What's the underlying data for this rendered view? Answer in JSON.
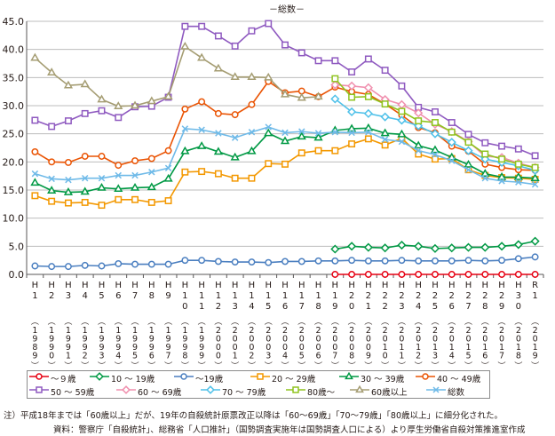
{
  "chart_data": {
    "type": "line",
    "title": "－総数－",
    "ylim": [
      0,
      45
    ],
    "yticks": [
      "0.0",
      "5.0",
      "10.0",
      "15.0",
      "20.0",
      "25.0",
      "30.0",
      "35.0",
      "40.0",
      "45.0"
    ],
    "grid": "horizontal",
    "legend_position": "bottom",
    "categories": [
      {
        "era": "H1",
        "year": "1989"
      },
      {
        "era": "H2",
        "year": "1990"
      },
      {
        "era": "H3",
        "year": "1991"
      },
      {
        "era": "H4",
        "year": "1992"
      },
      {
        "era": "H5",
        "year": "1993"
      },
      {
        "era": "H6",
        "year": "1994"
      },
      {
        "era": "H7",
        "year": "1995"
      },
      {
        "era": "H8",
        "year": "1996"
      },
      {
        "era": "H9",
        "year": "1997"
      },
      {
        "era": "H10",
        "year": "1998"
      },
      {
        "era": "H11",
        "year": "1999"
      },
      {
        "era": "H12",
        "year": "2000"
      },
      {
        "era": "H13",
        "year": "2001"
      },
      {
        "era": "H14",
        "year": "2002"
      },
      {
        "era": "H15",
        "year": "2003"
      },
      {
        "era": "H16",
        "year": "2004"
      },
      {
        "era": "H17",
        "year": "2005"
      },
      {
        "era": "H18",
        "year": "2006"
      },
      {
        "era": "H19",
        "year": "2007"
      },
      {
        "era": "H20",
        "year": "2008"
      },
      {
        "era": "H21",
        "year": "2009"
      },
      {
        "era": "H22",
        "year": "2010"
      },
      {
        "era": "H23",
        "year": "2011"
      },
      {
        "era": "H24",
        "year": "2012"
      },
      {
        "era": "H25",
        "year": "2013"
      },
      {
        "era": "H26",
        "year": "2014"
      },
      {
        "era": "H27",
        "year": "2015"
      },
      {
        "era": "H28",
        "year": "2016"
      },
      {
        "era": "H29",
        "year": "2017"
      },
      {
        "era": "H30",
        "year": "2018"
      },
      {
        "era": "R1",
        "year": "2019"
      }
    ],
    "series": [
      {
        "name": "～９歳",
        "color": "#e60012",
        "marker": "circle",
        "values": [
          null,
          null,
          null,
          null,
          null,
          null,
          null,
          null,
          null,
          null,
          null,
          null,
          null,
          null,
          null,
          null,
          null,
          null,
          0.0,
          0.0,
          0.0,
          0.0,
          0.0,
          0.0,
          0.0,
          0.0,
          0.0,
          0.0,
          0.0,
          0.0,
          0.0
        ]
      },
      {
        "name": "10 ～ 19歳",
        "color": "#009944",
        "marker": "diamond",
        "values": [
          null,
          null,
          null,
          null,
          null,
          null,
          null,
          null,
          null,
          null,
          null,
          null,
          null,
          null,
          null,
          null,
          null,
          null,
          4.5,
          5.0,
          4.8,
          4.7,
          5.2,
          5.0,
          4.6,
          4.7,
          4.8,
          4.8,
          5.0,
          5.3,
          5.9
        ]
      },
      {
        "name": "～19歳",
        "color": "#4b7fc0",
        "marker": "circle",
        "values": [
          1.5,
          1.4,
          1.4,
          1.6,
          1.5,
          1.9,
          1.8,
          1.8,
          1.8,
          2.5,
          2.5,
          2.3,
          2.2,
          2.2,
          2.1,
          2.3,
          2.3,
          2.4,
          2.4,
          2.5,
          2.4,
          2.4,
          2.5,
          2.4,
          2.4,
          2.4,
          2.5,
          2.4,
          2.5,
          2.8,
          3.1
        ]
      },
      {
        "name": "20 ～ 29歳",
        "color": "#f39800",
        "marker": "square",
        "values": [
          14.0,
          13.0,
          12.7,
          12.8,
          12.3,
          13.3,
          13.3,
          12.8,
          13.1,
          18.2,
          18.3,
          17.9,
          17.1,
          17.1,
          19.7,
          19.6,
          21.6,
          22.0,
          22.0,
          23.2,
          24.1,
          23.0,
          24.2,
          21.4,
          20.5,
          20.6,
          18.6,
          17.6,
          17.2,
          17.1,
          16.9
        ]
      },
      {
        "name": "30 ～ 39歳",
        "color": "#009944",
        "marker": "triangle",
        "values": [
          16.3,
          14.9,
          14.6,
          14.7,
          15.4,
          15.2,
          15.4,
          15.5,
          17.0,
          21.9,
          22.8,
          21.8,
          20.8,
          21.9,
          25.1,
          23.7,
          24.5,
          24.3,
          25.6,
          25.9,
          26.0,
          25.1,
          24.9,
          22.9,
          22.1,
          20.8,
          19.5,
          17.9,
          17.3,
          17.3,
          17.1
        ]
      },
      {
        "name": "40 ～ 49歳",
        "color": "#ea5404",
        "marker": "circle",
        "values": [
          21.8,
          20.0,
          19.9,
          21.0,
          21.0,
          19.4,
          20.2,
          20.6,
          22.0,
          29.4,
          30.7,
          28.6,
          28.4,
          30.2,
          34.3,
          32.3,
          32.6,
          31.6,
          33.3,
          32.5,
          32.0,
          30.3,
          28.3,
          26.1,
          25.2,
          22.8,
          21.9,
          19.6,
          19.0,
          18.6,
          18.5
        ]
      },
      {
        "name": "50 ～ 59歳",
        "color": "#8f5ac0",
        "marker": "square",
        "values": [
          27.4,
          26.3,
          27.3,
          28.6,
          29.1,
          27.9,
          29.8,
          29.9,
          31.5,
          44.1,
          44.1,
          42.4,
          40.6,
          43.3,
          44.6,
          40.8,
          39.4,
          38.0,
          38.0,
          36.0,
          38.3,
          36.3,
          33.5,
          29.7,
          28.9,
          27.0,
          24.9,
          23.4,
          22.8,
          22.3,
          21.1
        ]
      },
      {
        "name": "60 ～ 69歳",
        "color": "#f08fae",
        "marker": "diamond",
        "values": [
          null,
          null,
          null,
          null,
          null,
          null,
          null,
          null,
          null,
          null,
          null,
          null,
          null,
          null,
          null,
          null,
          null,
          null,
          33.7,
          33.5,
          33.2,
          31.1,
          30.2,
          28.7,
          26.7,
          25.4,
          23.6,
          21.0,
          20.8,
          19.8,
          19.0
        ]
      },
      {
        "name": "70 ～ 79歳",
        "color": "#4fc1e9",
        "marker": "diamond",
        "values": [
          null,
          null,
          null,
          null,
          null,
          null,
          null,
          null,
          null,
          null,
          null,
          null,
          null,
          null,
          null,
          null,
          null,
          null,
          31.2,
          28.9,
          28.6,
          28.0,
          27.4,
          26.4,
          25.0,
          23.5,
          22.0,
          20.5,
          19.9,
          19.3,
          18.5
        ]
      },
      {
        "name": "80歳～",
        "color": "#8fc31f",
        "marker": "square",
        "values": [
          null,
          null,
          null,
          null,
          null,
          null,
          null,
          null,
          null,
          null,
          null,
          null,
          null,
          null,
          null,
          null,
          null,
          null,
          34.8,
          31.5,
          31.6,
          30.3,
          29.0,
          27.3,
          27.0,
          25.3,
          23.5,
          21.4,
          20.5,
          19.6,
          19.0
        ]
      },
      {
        "name": "60歳以上",
        "color": "#a59d73",
        "marker": "triangle",
        "values": [
          38.5,
          35.9,
          33.6,
          33.8,
          31.1,
          29.9,
          30.0,
          30.8,
          31.6,
          40.5,
          38.5,
          36.6,
          35.1,
          35.1,
          35.0,
          32.0,
          31.4,
          31.6,
          null,
          null,
          null,
          null,
          null,
          null,
          null,
          null,
          null,
          null,
          null,
          null,
          null
        ]
      },
      {
        "name": "総数",
        "color": "#6fbae8",
        "marker": "cross",
        "values": [
          17.9,
          17.0,
          16.8,
          17.1,
          17.1,
          17.6,
          17.6,
          18.2,
          18.9,
          25.9,
          25.7,
          25.1,
          24.3,
          25.3,
          26.2,
          25.2,
          25.4,
          25.1,
          25.3,
          25.2,
          25.3,
          24.0,
          23.6,
          22.0,
          21.3,
          20.2,
          18.6,
          17.1,
          16.6,
          16.4,
          16.0
        ]
      }
    ]
  },
  "note": "注）平成18年までは「60歳以上」だが、19年の自殺統計原票改正以降は「60～69歳」「70～79歳」「80歳以上」に細分化された。",
  "source": "資料：警察庁「自殺統計」、総務省「人口推計」（国勢調査実施年は国勢調査人口による）より厚生労働省自殺対策推進室作成"
}
